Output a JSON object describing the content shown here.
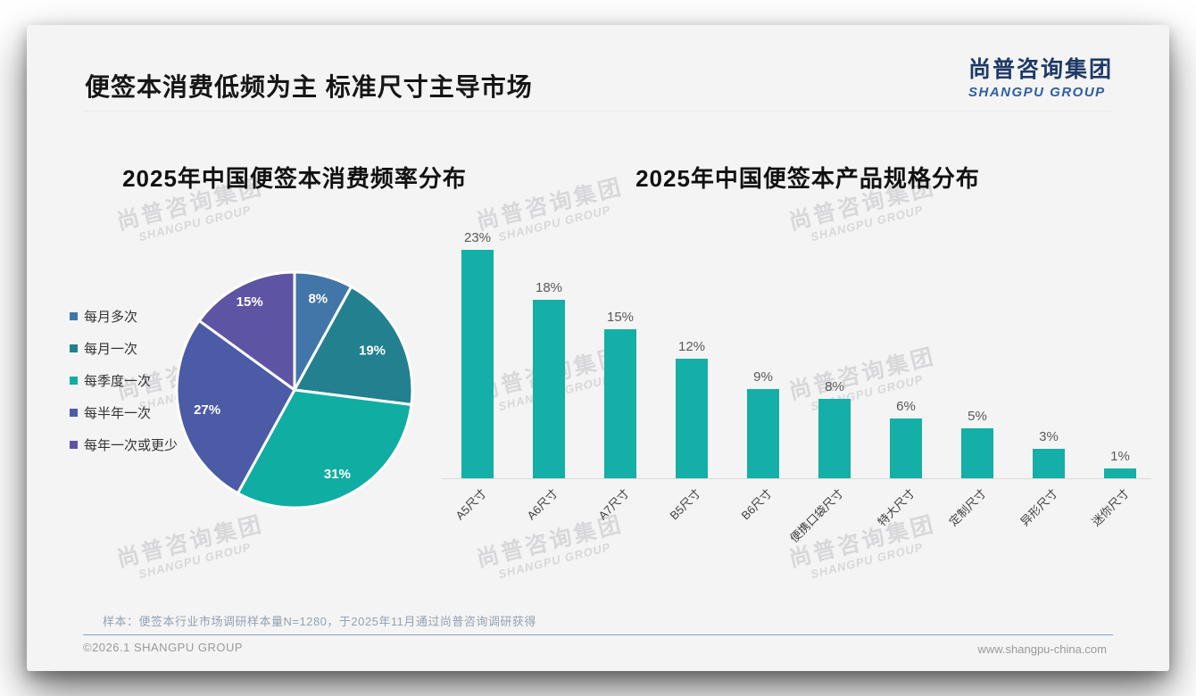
{
  "page": {
    "title": "便签本消费低频为主 标准尺寸主导市场",
    "logo": {
      "cn": "尚普咨询集团",
      "en": "SHANGPU GROUP"
    },
    "watermark": {
      "line1": "尚普咨询集团",
      "line2": "SHANGPU GROUP"
    },
    "footer": {
      "note": "样本：便签本行业市场调研样本量N=1280，于2025年11月通过尚普咨询调研获得",
      "copyright": "©2026.1 SHANGPU GROUP",
      "website": "www.shangpu-china.com"
    }
  },
  "chart_data": [
    {
      "type": "pie",
      "title": "2025年中国便签本消费频率分布",
      "labels": [
        "每月多次",
        "每月一次",
        "每季度一次",
        "每半年一次",
        "每年一次或更少"
      ],
      "values": [
        8,
        19,
        31,
        27,
        15
      ],
      "value_labels": [
        "8%",
        "19%",
        "31%",
        "27%",
        "15%"
      ],
      "colors": [
        "#4376a8",
        "#23808f",
        "#10ada2",
        "#4c5ba6",
        "#5e54a4"
      ],
      "value_format": "percent",
      "legend_position": "left",
      "start_angle_deg": 0,
      "direction": "clockwise",
      "slice_border_color": "#ffffff"
    },
    {
      "type": "bar",
      "title": "2025年中国便签本产品规格分布",
      "categories": [
        "A5尺寸",
        "A6尺寸",
        "A7尺寸",
        "B5尺寸",
        "B6尺寸",
        "便携口袋尺寸",
        "特大尺寸",
        "定制尺寸",
        "异形尺寸",
        "迷你尺寸"
      ],
      "values": [
        23,
        18,
        15,
        12,
        9,
        8,
        6,
        5,
        3,
        1
      ],
      "value_labels": [
        "23%",
        "18%",
        "15%",
        "12%",
        "9%",
        "8%",
        "6%",
        "5%",
        "3%",
        "1%"
      ],
      "bar_color": "#14afa6",
      "value_format": "percent",
      "xlabel": "",
      "ylabel": "",
      "ylim": [
        0,
        25
      ],
      "grid": false,
      "axis_color": "#d9d9d9"
    }
  ]
}
